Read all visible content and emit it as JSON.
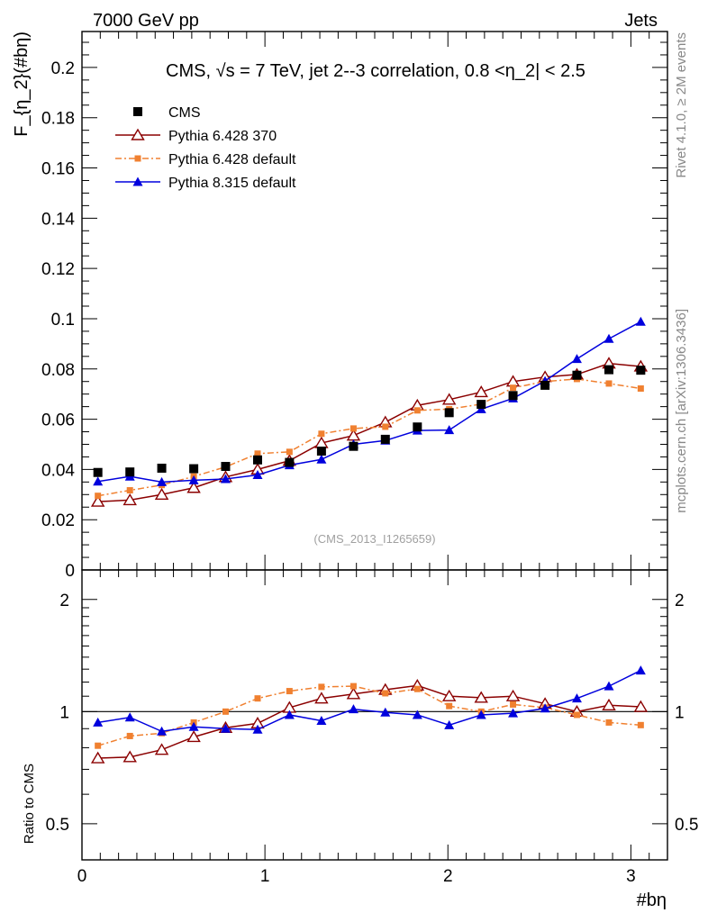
{
  "header": {
    "left": "7000 GeV pp",
    "right": "Jets"
  },
  "side_labels": {
    "rivet": "Rivet 4.1.0, ≥ 2M events",
    "mcplots": "mcplots.cern.ch [arXiv:1306.3436]"
  },
  "chart_data": [
    {
      "type": "scatter",
      "panel": "main",
      "title": "CMS, √s = 7 TeV, jet 2--3 correlation, 0.8 <η_2| < 2.5",
      "watermark": "(CMS_2013_I1265659)",
      "ylabel": "F_{η_2}(#bη)",
      "xlabel": "#bη",
      "xlim": [
        0,
        3.2
      ],
      "ylim": [
        0,
        0.2143
      ],
      "y_ticks": [
        0,
        0.02,
        0.04,
        0.06,
        0.08,
        0.1,
        0.12,
        0.14,
        0.16,
        0.18,
        0.2
      ],
      "y_tick_labels": [
        "0",
        "0.02",
        "0.04",
        "0.06",
        "0.08",
        "0.1",
        "0.12",
        "0.14",
        "0.16",
        "0.18",
        "0.2"
      ],
      "x": [
        0.087,
        0.262,
        0.436,
        0.611,
        0.785,
        0.96,
        1.134,
        1.309,
        1.484,
        1.658,
        1.833,
        2.007,
        2.182,
        2.356,
        2.531,
        2.705,
        2.88,
        3.054
      ],
      "series": [
        {
          "name": "CMS",
          "color": "#000000",
          "marker": "square",
          "values": [
            0.0388,
            0.039,
            0.0405,
            0.0403,
            0.0412,
            0.0438,
            0.0428,
            0.0473,
            0.0492,
            0.052,
            0.0569,
            0.0626,
            0.0659,
            0.0694,
            0.0735,
            0.0775,
            0.0797,
            0.0795
          ]
        },
        {
          "name": "Pythia 6.428 370",
          "color": "#8b0000",
          "marker": "open-triangle",
          "line": "solid",
          "values": [
            0.0272,
            0.0278,
            0.03,
            0.0327,
            0.037,
            0.04,
            0.0435,
            0.0505,
            0.0535,
            0.0588,
            0.0655,
            0.0678,
            0.0708,
            0.075,
            0.0768,
            0.0778,
            0.0822,
            0.081
          ]
        },
        {
          "name": "Pythia 6.428 default",
          "color": "#f08030",
          "marker": "filled-square-small",
          "line": "dashdot",
          "values": [
            0.0295,
            0.0317,
            0.0338,
            0.0372,
            0.041,
            0.0463,
            0.047,
            0.0542,
            0.0563,
            0.057,
            0.0635,
            0.064,
            0.066,
            0.0725,
            0.075,
            0.076,
            0.0742,
            0.0722
          ]
        },
        {
          "name": "Pythia 8.315 default",
          "color": "#0000dd",
          "marker": "filled-triangle",
          "line": "solid",
          "values": [
            0.0352,
            0.0372,
            0.035,
            0.0357,
            0.0362,
            0.0378,
            0.0417,
            0.044,
            0.05,
            0.0515,
            0.0555,
            0.0557,
            0.064,
            0.0683,
            0.0752,
            0.084,
            0.092,
            0.0988
          ]
        }
      ]
    },
    {
      "type": "line",
      "panel": "ratio",
      "ylabel": "Ratio to CMS",
      "scale": "log",
      "ylim": [
        0.4,
        2.4
      ],
      "y_ticks": [
        0.5,
        1,
        2
      ],
      "y_tick_labels": [
        "0.5",
        "1",
        "2"
      ],
      "x_ticks": [
        0,
        1,
        2,
        3
      ],
      "x_tick_labels": [
        "0",
        "1",
        "2",
        "3"
      ],
      "xlim": [
        0,
        3.2
      ],
      "reference": 1,
      "x": [
        0.087,
        0.262,
        0.436,
        0.611,
        0.785,
        0.96,
        1.134,
        1.309,
        1.484,
        1.658,
        1.833,
        2.007,
        2.182,
        2.356,
        2.531,
        2.705,
        2.88,
        3.054
      ],
      "series": [
        {
          "name": "Pythia 6.428 370",
          "color": "#8b0000",
          "marker": "open-triangle",
          "line": "solid",
          "values": [
            0.75,
            0.755,
            0.79,
            0.855,
            0.905,
            0.93,
            1.025,
            1.085,
            1.115,
            1.145,
            1.175,
            1.1,
            1.09,
            1.1,
            1.05,
            1.0,
            1.04,
            1.03
          ]
        },
        {
          "name": "Pythia 6.428 default",
          "color": "#f08030",
          "marker": "filled-square-small",
          "line": "dashdot",
          "values": [
            0.81,
            0.86,
            0.875,
            0.935,
            1.0,
            1.085,
            1.135,
            1.165,
            1.17,
            1.12,
            1.15,
            1.035,
            1.0,
            1.045,
            1.025,
            0.98,
            0.935,
            0.92
          ]
        },
        {
          "name": "Pythia 8.315 default",
          "color": "#0000dd",
          "marker": "filled-triangle",
          "line": "solid",
          "values": [
            0.935,
            0.965,
            0.885,
            0.91,
            0.9,
            0.895,
            0.98,
            0.945,
            1.015,
            0.995,
            0.98,
            0.92,
            0.98,
            0.99,
            1.02,
            1.085,
            1.17,
            1.29
          ]
        }
      ]
    }
  ]
}
